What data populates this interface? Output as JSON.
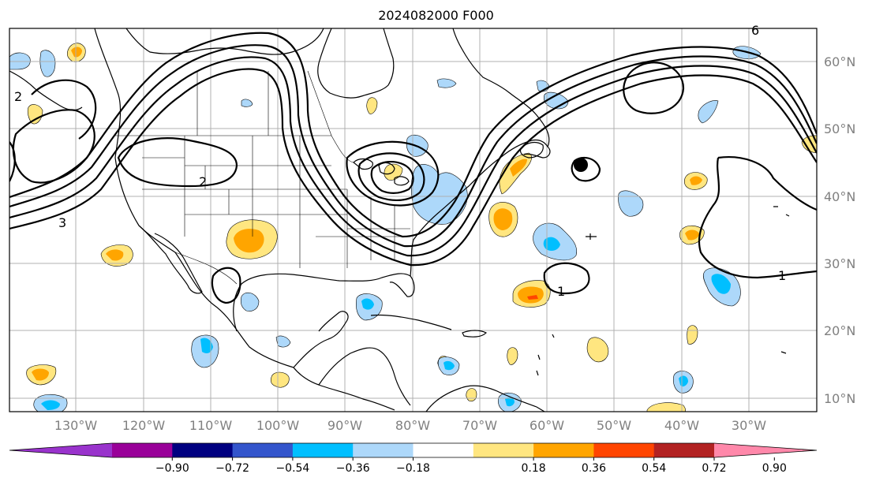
{
  "title": "2024082000 F000",
  "longitude_labels": [
    "130°W",
    "120°W",
    "110°W",
    "100°W",
    "90°W",
    "80°W",
    "70°W",
    "60°W",
    "50°W",
    "40°W",
    "30°W"
  ],
  "latitude_labels": [
    "60°N",
    "50°N",
    "40°N",
    "30°N",
    "20°N",
    "10°N"
  ],
  "colorbar": {
    "ticks": [
      "−0.90",
      "−0.72",
      "−0.54",
      "−0.36",
      "−0.18",
      "0.18",
      "0.36",
      "0.54",
      "0.72",
      "0.90"
    ],
    "colors": [
      "#9933cc",
      "#990099",
      "#000080",
      "#3355cc",
      "#00bfff",
      "#add8fa",
      "#ffffff",
      "#ffe680",
      "#ffa500",
      "#ff4500",
      "#b22222",
      "#ff88aa"
    ]
  },
  "contour_labels": [
    "1",
    "1",
    "2",
    "3",
    "6",
    "2"
  ],
  "colors": {
    "positive_light": "#ffe680",
    "positive_mid": "#ffa500",
    "positive_high": "#ff4500",
    "negative_light": "#add8fa",
    "negative_mid": "#00bfff",
    "land_line": "#000000",
    "grid": "#b0b0b0"
  }
}
